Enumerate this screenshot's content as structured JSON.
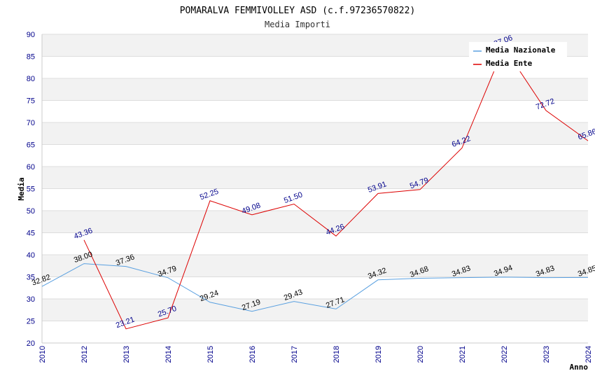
{
  "chart_data": {
    "type": "line",
    "title": "POMARALVA FEMMIVOLLEY ASD (c.f.97236570822)",
    "subtitle": "Media Importi",
    "xlabel": "Anno",
    "ylabel": "Media",
    "ylim": [
      20,
      90
    ],
    "yticks": [
      20,
      25,
      30,
      35,
      40,
      45,
      50,
      55,
      60,
      65,
      70,
      75,
      80,
      85,
      90
    ],
    "grid": true,
    "legend_position": "top-right",
    "x": [
      "2010",
      "2012",
      "2013",
      "2014",
      "2015",
      "2016",
      "2017",
      "2018",
      "2019",
      "2020",
      "2021",
      "2022",
      "2023",
      "2024"
    ],
    "series": [
      {
        "name": "Media Nazionale",
        "color": "#5aa0e0",
        "values": [
          32.82,
          38.0,
          37.36,
          34.79,
          29.24,
          27.19,
          29.43,
          27.71,
          34.32,
          34.68,
          34.83,
          34.94,
          34.83,
          34.85
        ],
        "labels": [
          "32.82",
          "38.00",
          "37.36",
          "34.79",
          "29.24",
          "27.19",
          "29.43",
          "27.71",
          "34.32",
          "34.68",
          "34.83",
          "34.94",
          "34.83",
          "34.85"
        ]
      },
      {
        "name": "Media Ente",
        "color": "#dd0000",
        "values": [
          null,
          43.36,
          23.21,
          25.7,
          52.25,
          49.08,
          51.5,
          44.26,
          53.91,
          54.79,
          64.22,
          87.06,
          72.72,
          65.86
        ],
        "labels": [
          null,
          "43.36",
          "23.21",
          "25.70",
          "52.25",
          "49.08",
          "51.50",
          "44.26",
          "53.91",
          "54.79",
          "64.22",
          "87.06",
          "72.72",
          "65.86"
        ]
      }
    ]
  }
}
